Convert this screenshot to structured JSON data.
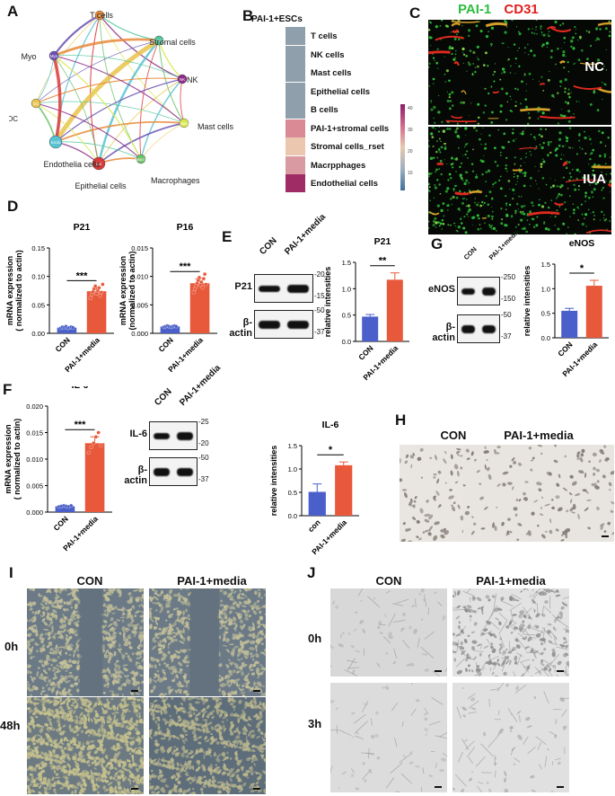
{
  "panels": {
    "A": "A",
    "B": "B",
    "C": "C",
    "D": "D",
    "E": "E",
    "F": "F",
    "G": "G",
    "H": "H",
    "I": "I",
    "J": "J"
  },
  "network": {
    "nodes": [
      {
        "label": "T cells",
        "short": "T",
        "color": "#e8893a"
      },
      {
        "label": "Stromal cells",
        "short": "Stroma",
        "color": "#4fc79a"
      },
      {
        "label": "NK",
        "short": "NK",
        "color": "#8e2c8a"
      },
      {
        "label": "Mast cells",
        "short": "Mast",
        "color": "#d7e84a"
      },
      {
        "label": "Macrophages",
        "short": "Macro",
        "color": "#6ec26a"
      },
      {
        "label": "Epithelial cells",
        "short": "Epi",
        "color": "#d93a3a"
      },
      {
        "label": "Endothelia cells",
        "short": "Endo",
        "color": "#58c2d2"
      },
      {
        "label": "DC",
        "short": "DC",
        "color": "#e8c34a"
      },
      {
        "label": "Myo",
        "short": "Myo",
        "color": "#6b52b3"
      }
    ]
  },
  "heatmap": {
    "title": "PAI-1+ESCs",
    "rows": [
      {
        "label": "T cells",
        "color": "#8fa0ac"
      },
      {
        "label": "NK cells",
        "color": "#8fa0ac"
      },
      {
        "label": "Mast cells",
        "color": "#8fa0ac"
      },
      {
        "label": "Epithelial cells",
        "color": "#8fa0ac"
      },
      {
        "label": "B cells",
        "color": "#8fa0ac"
      },
      {
        "label": "PAI-1+stromal cells",
        "color": "#d98a94"
      },
      {
        "label": "Stromal cells_rset",
        "color": "#ecc7b0"
      },
      {
        "label": "Macrpphages",
        "color": "#d99aa2"
      },
      {
        "label": "Endothelial cells",
        "color": "#a02c66"
      }
    ],
    "scale": [
      "40",
      "30",
      "20",
      "10"
    ]
  },
  "if_panel": {
    "stain1": "PAI-1",
    "stain2": "CD31",
    "top": "NC",
    "bottom": "IUA"
  },
  "chart_data": [
    {
      "id": "D1",
      "type": "bar",
      "title": "P21",
      "ylabel": "mRNA expression\n( normalized to actin)",
      "categories": [
        "CON",
        "PAI-1+media"
      ],
      "values": [
        0.01,
        0.074
      ],
      "errors": [
        0.001,
        0.006
      ],
      "ylim": [
        0,
        0.15
      ],
      "yticks": [
        "0.00",
        "0.05",
        "0.10",
        "0.15"
      ],
      "yvals": [
        0,
        0.05,
        0.1,
        0.15
      ],
      "sig": "***",
      "colors": [
        "#4a5fc9",
        "#e8583a"
      ],
      "points": [
        [
          0.009,
          0.011,
          0.01,
          0.012,
          0.009,
          0.01,
          0.011,
          0.01
        ],
        [
          0.062,
          0.068,
          0.073,
          0.078,
          0.083,
          0.07,
          0.075,
          0.08,
          0.066,
          0.072,
          0.086
        ]
      ]
    },
    {
      "id": "D2",
      "type": "bar",
      "title": "P16",
      "ylabel": "mRNA expression\n(normalized to actin)",
      "categories": [
        "CON",
        "PAI-1+media"
      ],
      "values": [
        0.0012,
        0.0088
      ],
      "errors": [
        0.0001,
        0.0008
      ],
      "ylim": [
        0,
        0.015
      ],
      "yticks": [
        "0.000",
        "0.005",
        "0.010",
        "0.015"
      ],
      "yvals": [
        0,
        0.005,
        0.01,
        0.015
      ],
      "sig": "***",
      "colors": [
        "#4a5fc9",
        "#e8583a"
      ],
      "points": [
        [
          0.0011,
          0.0012,
          0.0013,
          0.0012,
          0.0011,
          0.0012,
          0.0013,
          0.0012
        ],
        [
          0.0072,
          0.0078,
          0.0083,
          0.0088,
          0.0093,
          0.0098,
          0.0085,
          0.009,
          0.008,
          0.0096,
          0.0104,
          0.0086
        ]
      ]
    },
    {
      "id": "E",
      "type": "bar",
      "title": "P21",
      "ylabel": "relative intensities",
      "categories": [
        "CON",
        "PAI-1+media"
      ],
      "values": [
        0.47,
        1.17
      ],
      "errors": [
        0.04,
        0.13
      ],
      "ylim": [
        0,
        1.5
      ],
      "yticks": [
        "0.0",
        "0.5",
        "1.0",
        "1.5"
      ],
      "yvals": [
        0,
        0.5,
        1.0,
        1.5
      ],
      "sig": "**",
      "colors": [
        "#4a5fc9",
        "#e8583a"
      ],
      "points": [
        [],
        []
      ]
    },
    {
      "id": "G",
      "type": "bar",
      "title": "eNOS",
      "ylabel": "relative intensities",
      "categories": [
        "CON",
        "PAI-1+media"
      ],
      "values": [
        0.55,
        1.06
      ],
      "errors": [
        0.05,
        0.11
      ],
      "ylim": [
        0,
        1.5
      ],
      "yticks": [
        "0.0",
        "0.5",
        "1.0",
        "1.5"
      ],
      "yvals": [
        0,
        0.5,
        1.0,
        1.5
      ],
      "sig": "*",
      "colors": [
        "#4a5fc9",
        "#e8583a"
      ],
      "points": [
        [],
        []
      ]
    },
    {
      "id": "F1",
      "type": "bar",
      "title": "IL-6",
      "ylabel": "mRNA expression\n( normalized to actin)",
      "categories": [
        "CON",
        "PAI-1+media"
      ],
      "values": [
        0.0011,
        0.013
      ],
      "errors": [
        0.0001,
        0.0012
      ],
      "ylim": [
        0,
        0.02
      ],
      "yticks": [
        "0.000",
        "0.005",
        "0.010",
        "0.015",
        "0.020"
      ],
      "yvals": [
        0,
        0.005,
        0.01,
        0.015,
        0.02
      ],
      "sig": "***",
      "colors": [
        "#4a5fc9",
        "#e8583a"
      ],
      "points": [
        [
          0.001,
          0.0011,
          0.0012,
          0.0011,
          0.001,
          0.0012
        ],
        [
          0.0112,
          0.0122,
          0.013,
          0.0142,
          0.015,
          0.0126
        ]
      ]
    },
    {
      "id": "F2",
      "type": "bar",
      "title": "IL-6",
      "ylabel": "relative intensities",
      "categories": [
        "con",
        "PAI-1+media"
      ],
      "values": [
        0.51,
        1.08
      ],
      "errors": [
        0.17,
        0.07
      ],
      "ylim": [
        0,
        1.5
      ],
      "yticks": [
        "0.0",
        "0.5",
        "1.0",
        "1.5"
      ],
      "yvals": [
        0,
        0.5,
        1.0,
        1.5
      ],
      "sig": "*",
      "colors": [
        "#4a5fc9",
        "#e8583a"
      ],
      "points": [
        [],
        []
      ]
    }
  ],
  "blots": {
    "E": {
      "cols": [
        "CON",
        "PAI-1+media"
      ],
      "rows": [
        {
          "label": "P21",
          "marks": [
            "20",
            "15"
          ]
        },
        {
          "label": "β-actin",
          "marks": [
            "50",
            "37"
          ]
        }
      ]
    },
    "G": {
      "cols": [
        "CON",
        "PAI-1+media"
      ],
      "rows": [
        {
          "label": "eNOS",
          "marks": [
            "250",
            "150"
          ]
        },
        {
          "label": "β-actin",
          "marks": [
            "50",
            "37"
          ]
        }
      ]
    },
    "F": {
      "cols": [
        "CON",
        "PAI-1+media"
      ],
      "rows": [
        {
          "label": "IL-6",
          "marks": [
            "25",
            "20"
          ]
        },
        {
          "label": "β-actin",
          "marks": [
            "50",
            "37"
          ]
        }
      ]
    }
  },
  "H": {
    "cols": [
      "CON",
      "PAI-1+media"
    ]
  },
  "I": {
    "cols": [
      "CON",
      "PAI-1+media"
    ],
    "rows": [
      "0h",
      "48h"
    ]
  },
  "J": {
    "cols": [
      "CON",
      "PAI-1+media"
    ],
    "rows": [
      "0h",
      "3h"
    ]
  }
}
